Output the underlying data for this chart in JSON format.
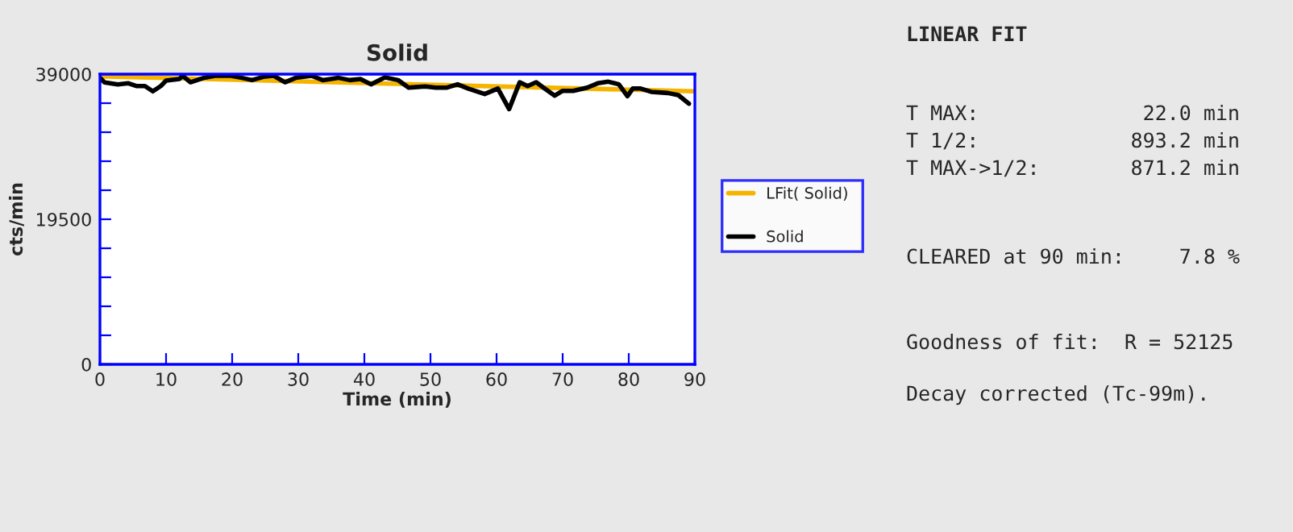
{
  "chart_data": {
    "type": "line",
    "title": "Solid",
    "xlabel": "Time (min)",
    "ylabel": "cts/min",
    "xlim": [
      0,
      90
    ],
    "xticks": [
      0,
      10,
      20,
      30,
      40,
      50,
      60,
      70,
      80,
      90
    ],
    "ylim": [
      0,
      39000
    ],
    "yticks": [
      0,
      {
        "value": 3900,
        "label": null
      },
      {
        "value": 7800,
        "label": null
      },
      {
        "value": 11700,
        "label": null
      },
      {
        "value": 15600,
        "label": null
      },
      19500,
      {
        "value": 23400,
        "label": null
      },
      {
        "value": 27300,
        "label": null
      },
      {
        "value": 31200,
        "label": null
      },
      {
        "value": 35100,
        "label": null
      },
      39000
    ],
    "grid": false,
    "legend": "right",
    "marker": "none",
    "line_style": "solid",
    "series": [
      {
        "name": "LFit( Solid)",
        "color": "#f5b400",
        "x": [
          0,
          90
        ],
        "values": [
          38700,
          36690
        ]
      },
      {
        "name": "Solid",
        "color": "#000000",
        "x": [
          0,
          0.7,
          2.7,
          4.3,
          5.5,
          6.8,
          8,
          9.2,
          10,
          12,
          12.5,
          13.7,
          15.7,
          17.4,
          19.8,
          21.5,
          23,
          24.7,
          26.3,
          28,
          29.6,
          32,
          33.7,
          36.1,
          37.8,
          39.4,
          41,
          43.1,
          45.1,
          46.7,
          49.2,
          50.8,
          52.5,
          54.1,
          55.7,
          58.2,
          60.2,
          61.9,
          63.5,
          64.7,
          66,
          67.1,
          68.8,
          70,
          71.6,
          73.7,
          75.3,
          76.9,
          78.5,
          79.8,
          80.6,
          81.8,
          83.4,
          85.9,
          87.5,
          89.1
        ],
        "values": [
          38500,
          37900,
          37630,
          37770,
          37410,
          37410,
          36690,
          37410,
          38130,
          38350,
          38780,
          37910,
          38500,
          38780,
          38780,
          38500,
          38200,
          38640,
          38780,
          37910,
          38500,
          38780,
          38200,
          38500,
          38200,
          38350,
          37630,
          38560,
          38200,
          37190,
          37340,
          37190,
          37190,
          37630,
          37070,
          36330,
          37070,
          34300,
          37910,
          37410,
          37910,
          37190,
          36110,
          36760,
          36760,
          37190,
          37770,
          37990,
          37630,
          36040,
          37070,
          37070,
          36620,
          36470,
          36180,
          35030
        ]
      }
    ],
    "annotations": [
      "LINEAR FIT",
      "T MAX:",
      "22.0 min",
      "T 1/2:",
      "893.2 min",
      "T MAX->1/2:",
      "871.2 min",
      "CLEARED at 90 min:",
      "7.8 %",
      "Goodness of fit:  R = 52125",
      "Decay corrected (Tc-99m)."
    ]
  }
}
